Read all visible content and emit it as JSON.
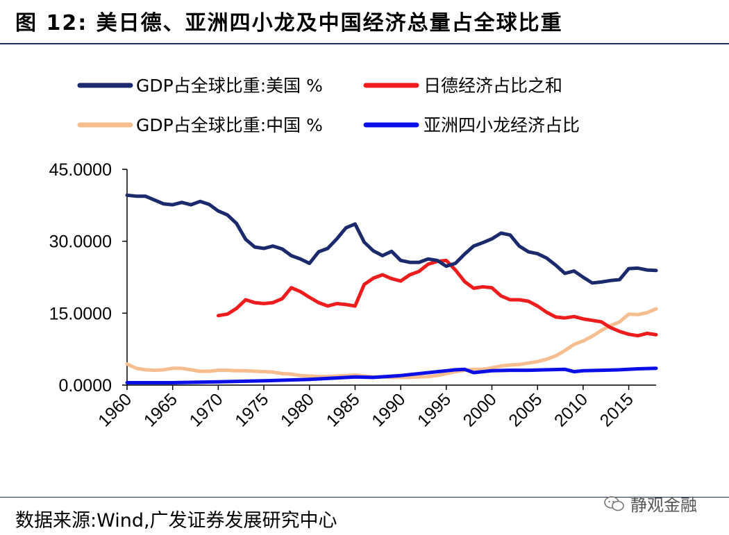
{
  "figure": {
    "title": "图 12:  美日德、亚洲四小龙及中国经济总量占全球比重",
    "source": "数据来源:Wind,广发证券发展研究中心",
    "watermark": "静观金融"
  },
  "chart_data": {
    "type": "line",
    "title": "",
    "xlabel": "",
    "ylabel": "",
    "ylim": [
      0,
      45
    ],
    "yticks": [
      {
        "value": 0,
        "label": "0.0000"
      },
      {
        "value": 15,
        "label": "15.0000"
      },
      {
        "value": 30,
        "label": "30.0000"
      },
      {
        "value": 45,
        "label": "45.0000"
      }
    ],
    "xlim": [
      1960,
      2018
    ],
    "xticks": [
      1960,
      1965,
      1970,
      1975,
      1980,
      1985,
      1990,
      1995,
      2000,
      2005,
      2010,
      2015
    ],
    "legend_position": "top",
    "series": [
      {
        "name": "GDP占全球比重:美国 %",
        "color": "#1a2a6c",
        "x": [
          1960,
          1961,
          1962,
          1963,
          1964,
          1965,
          1966,
          1967,
          1968,
          1969,
          1970,
          1971,
          1972,
          1973,
          1974,
          1975,
          1976,
          1977,
          1978,
          1979,
          1980,
          1981,
          1982,
          1983,
          1984,
          1985,
          1986,
          1987,
          1988,
          1989,
          1990,
          1991,
          1992,
          1993,
          1994,
          1995,
          1996,
          1997,
          1998,
          1999,
          2000,
          2001,
          2002,
          2003,
          2004,
          2005,
          2006,
          2007,
          2008,
          2009,
          2010,
          2011,
          2012,
          2013,
          2014,
          2015,
          2016,
          2017,
          2018
        ],
        "values": [
          39.6,
          39.4,
          39.4,
          38.6,
          37.8,
          37.6,
          38.1,
          37.6,
          38.3,
          37.7,
          36.3,
          35.5,
          33.7,
          30.4,
          28.8,
          28.5,
          29.0,
          28.4,
          27.0,
          26.3,
          25.4,
          27.8,
          28.5,
          30.5,
          32.8,
          33.6,
          29.8,
          28.0,
          27.0,
          27.9,
          26.0,
          25.6,
          25.6,
          26.3,
          26.0,
          24.8,
          25.4,
          27.3,
          29.0,
          29.7,
          30.5,
          31.7,
          31.3,
          29.0,
          27.8,
          27.4,
          26.5,
          25.0,
          23.3,
          23.8,
          22.5,
          21.3,
          21.5,
          21.8,
          22.0,
          24.3,
          24.4,
          24.0,
          23.9
        ]
      },
      {
        "name": "日德经济占比之和",
        "color": "#ee1c1c",
        "x": [
          1970,
          1971,
          1972,
          1973,
          1974,
          1975,
          1976,
          1977,
          1978,
          1979,
          1980,
          1981,
          1982,
          1983,
          1984,
          1985,
          1986,
          1987,
          1988,
          1989,
          1990,
          1991,
          1992,
          1993,
          1994,
          1995,
          1996,
          1997,
          1998,
          1999,
          2000,
          2001,
          2002,
          2003,
          2004,
          2005,
          2006,
          2007,
          2008,
          2009,
          2010,
          2011,
          2012,
          2013,
          2014,
          2015,
          2016,
          2017,
          2018
        ],
        "values": [
          14.5,
          14.8,
          16.0,
          17.8,
          17.2,
          17.0,
          17.2,
          18.0,
          20.3,
          19.5,
          18.3,
          17.2,
          16.5,
          17.0,
          16.8,
          16.5,
          21.0,
          22.3,
          23.0,
          22.2,
          21.7,
          23.0,
          23.7,
          25.2,
          25.8,
          26.0,
          24.0,
          21.6,
          20.2,
          20.5,
          20.3,
          18.6,
          17.8,
          17.8,
          17.5,
          16.5,
          15.2,
          14.2,
          14.0,
          14.3,
          13.8,
          13.5,
          13.2,
          12.0,
          11.2,
          10.6,
          10.3,
          10.8,
          10.5
        ]
      },
      {
        "name": "GDP占全球比重:中国 %",
        "color": "#f6bd8e",
        "x": [
          1960,
          1961,
          1962,
          1963,
          1964,
          1965,
          1966,
          1967,
          1968,
          1969,
          1970,
          1971,
          1972,
          1973,
          1974,
          1975,
          1976,
          1977,
          1978,
          1979,
          1980,
          1981,
          1982,
          1983,
          1984,
          1985,
          1986,
          1987,
          1988,
          1989,
          1990,
          1991,
          1992,
          1993,
          1994,
          1995,
          1996,
          1997,
          1998,
          1999,
          2000,
          2001,
          2002,
          2003,
          2004,
          2005,
          2006,
          2007,
          2008,
          2009,
          2010,
          2011,
          2012,
          2013,
          2014,
          2015,
          2016,
          2017,
          2018
        ],
        "values": [
          4.4,
          3.5,
          3.2,
          3.1,
          3.2,
          3.5,
          3.5,
          3.2,
          2.9,
          2.9,
          3.1,
          3.1,
          3.0,
          3.0,
          2.9,
          2.8,
          2.7,
          2.4,
          2.3,
          2.0,
          1.9,
          1.8,
          1.8,
          1.9,
          2.0,
          2.1,
          1.9,
          1.7,
          1.7,
          1.6,
          1.6,
          1.6,
          1.7,
          1.8,
          2.0,
          2.4,
          2.8,
          3.1,
          3.3,
          3.3,
          3.6,
          4.0,
          4.2,
          4.3,
          4.6,
          4.9,
          5.4,
          6.1,
          7.2,
          8.5,
          9.2,
          10.2,
          11.4,
          12.4,
          13.2,
          14.8,
          14.7,
          15.1,
          15.9
        ]
      },
      {
        "name": "亚洲四小龙经济占比",
        "color": "#0a0fe8",
        "x": [
          1960,
          1965,
          1970,
          1975,
          1980,
          1985,
          1987,
          1990,
          1995,
          1996,
          1997,
          1998,
          1999,
          2000,
          2002,
          2004,
          2006,
          2008,
          2009,
          2010,
          2012,
          2014,
          2016,
          2018
        ],
        "values": [
          0.5,
          0.5,
          0.7,
          0.9,
          1.2,
          1.7,
          1.6,
          2.0,
          3.0,
          3.2,
          3.3,
          2.6,
          2.8,
          3.0,
          3.1,
          3.1,
          3.2,
          3.3,
          2.8,
          3.0,
          3.1,
          3.2,
          3.4,
          3.5
        ]
      }
    ]
  }
}
